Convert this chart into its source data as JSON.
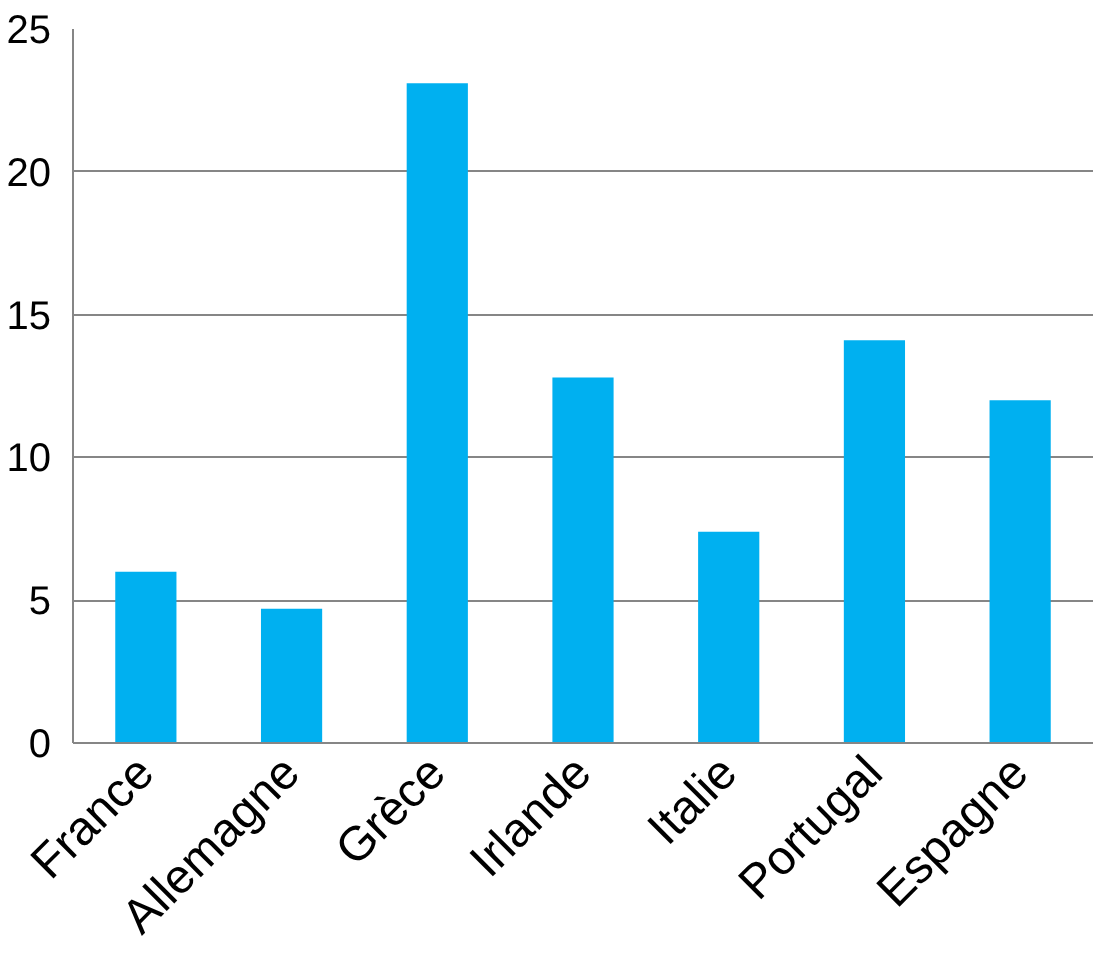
{
  "chart_data": {
    "type": "bar",
    "categories": [
      "France",
      "Allemagne",
      "Grèce",
      "Irlande",
      "Italie",
      "Portugal",
      "Espagne"
    ],
    "values": [
      6.0,
      4.7,
      23.1,
      12.8,
      7.4,
      14.1,
      12.0
    ],
    "color": "#00b0f0",
    "ylim": [
      0,
      25
    ],
    "yticks": [
      0,
      5,
      10,
      15,
      20,
      25
    ],
    "grid": "y"
  }
}
